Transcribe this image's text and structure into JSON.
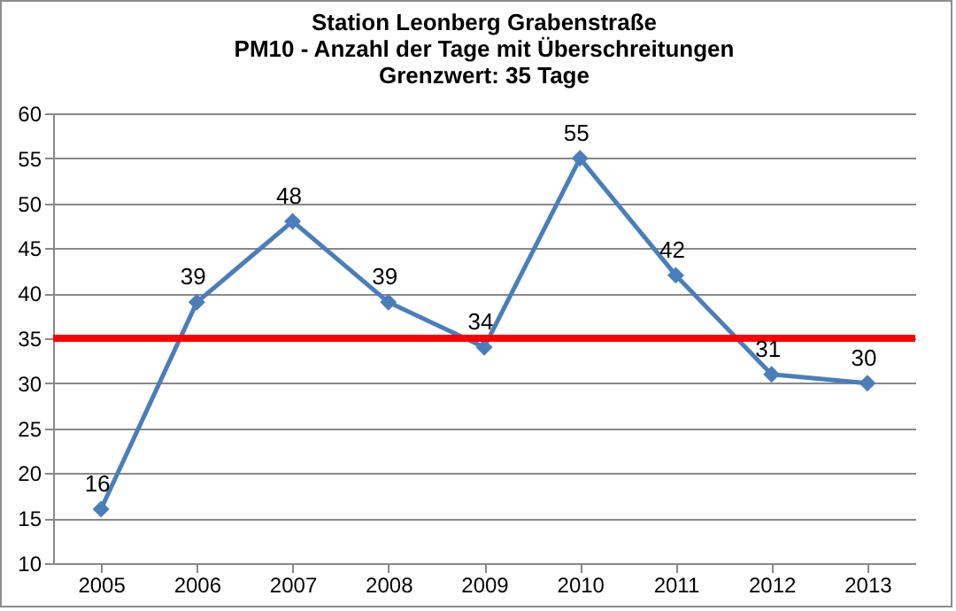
{
  "chart_data": {
    "type": "line",
    "title": "Station Leonberg Grabenstraße",
    "subtitle": "PM10 - Anzahl der Tage mit Überschreitungen\nGrenzwert: 35 Tage",
    "categories": [
      "2005",
      "2006",
      "2007",
      "2008",
      "2009",
      "2010",
      "2011",
      "2012",
      "2013"
    ],
    "series": [
      {
        "color": "#4a7ebb",
        "values": [
          16,
          39,
          48,
          39,
          34,
          55,
          42,
          31,
          30
        ]
      }
    ],
    "ylim": [
      10,
      60
    ],
    "yticks": [
      10,
      15,
      20,
      25,
      30,
      35,
      40,
      45,
      50,
      55,
      60
    ],
    "grid": "y",
    "marker": "diamond",
    "line_style": "solid",
    "data_labels": true,
    "ref_lines": [
      {
        "axis": "y",
        "value": 35,
        "color": "#ff0000",
        "line_style": "solid"
      }
    ]
  }
}
